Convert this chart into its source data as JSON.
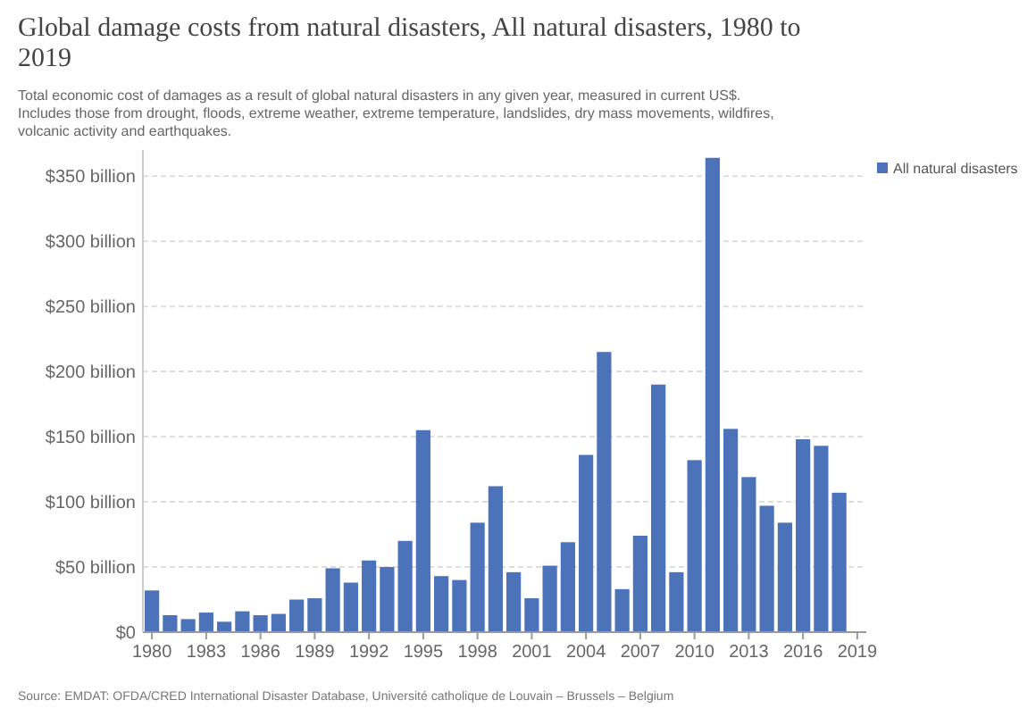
{
  "chart_data": {
    "type": "bar",
    "title": "Global damage costs from natural disasters, All natural disasters, 1980 to 2019",
    "subtitle": "Total economic cost of damages as a result of global natural disasters in any given year, measured in current US$. Includes those from drought, floods, extreme weather, extreme temperature, landslides, dry mass movements, wildfires, volcanic activity and earthquakes.",
    "categories": [
      "1980",
      null,
      null,
      "1983",
      null,
      null,
      "1986",
      null,
      null,
      "1989",
      null,
      null,
      "1992",
      null,
      null,
      "1995",
      null,
      null,
      "1998",
      null,
      null,
      "2001",
      null,
      null,
      "2004",
      null,
      null,
      "2007",
      null,
      null,
      "2010",
      null,
      null,
      "2013",
      null,
      null,
      "2016",
      null,
      null,
      "2019"
    ],
    "series": [
      {
        "name": "All natural disasters",
        "color": "#4c72b9",
        "values": [
          32,
          13,
          10,
          15,
          8,
          16,
          13,
          14,
          25,
          26,
          49,
          38,
          55,
          50,
          70,
          155,
          43,
          40,
          84,
          112,
          46,
          26,
          51,
          69,
          136,
          215,
          33,
          74,
          190,
          46,
          132,
          364,
          156,
          119,
          97,
          84,
          148,
          143,
          107,
          null
        ]
      }
    ],
    "ylim": [
      0,
      370
    ],
    "yticks": [
      {
        "value": 0,
        "label": "$0"
      },
      {
        "value": 50,
        "label": "$50 billion"
      },
      {
        "value": 100,
        "label": "$100 billion"
      },
      {
        "value": 150,
        "label": "$150 billion"
      },
      {
        "value": 200,
        "label": "$200 billion"
      },
      {
        "value": 250,
        "label": "$250 billion"
      },
      {
        "value": 300,
        "label": "$300 billion"
      },
      {
        "value": 350,
        "label": "$350 billion"
      }
    ],
    "grid": "y",
    "legend": "top right",
    "annotations": [
      "Source: EMDAT: OFDA/CRED International Disaster Database, Université catholique de Louvain – Brussels – Belgium"
    ]
  }
}
